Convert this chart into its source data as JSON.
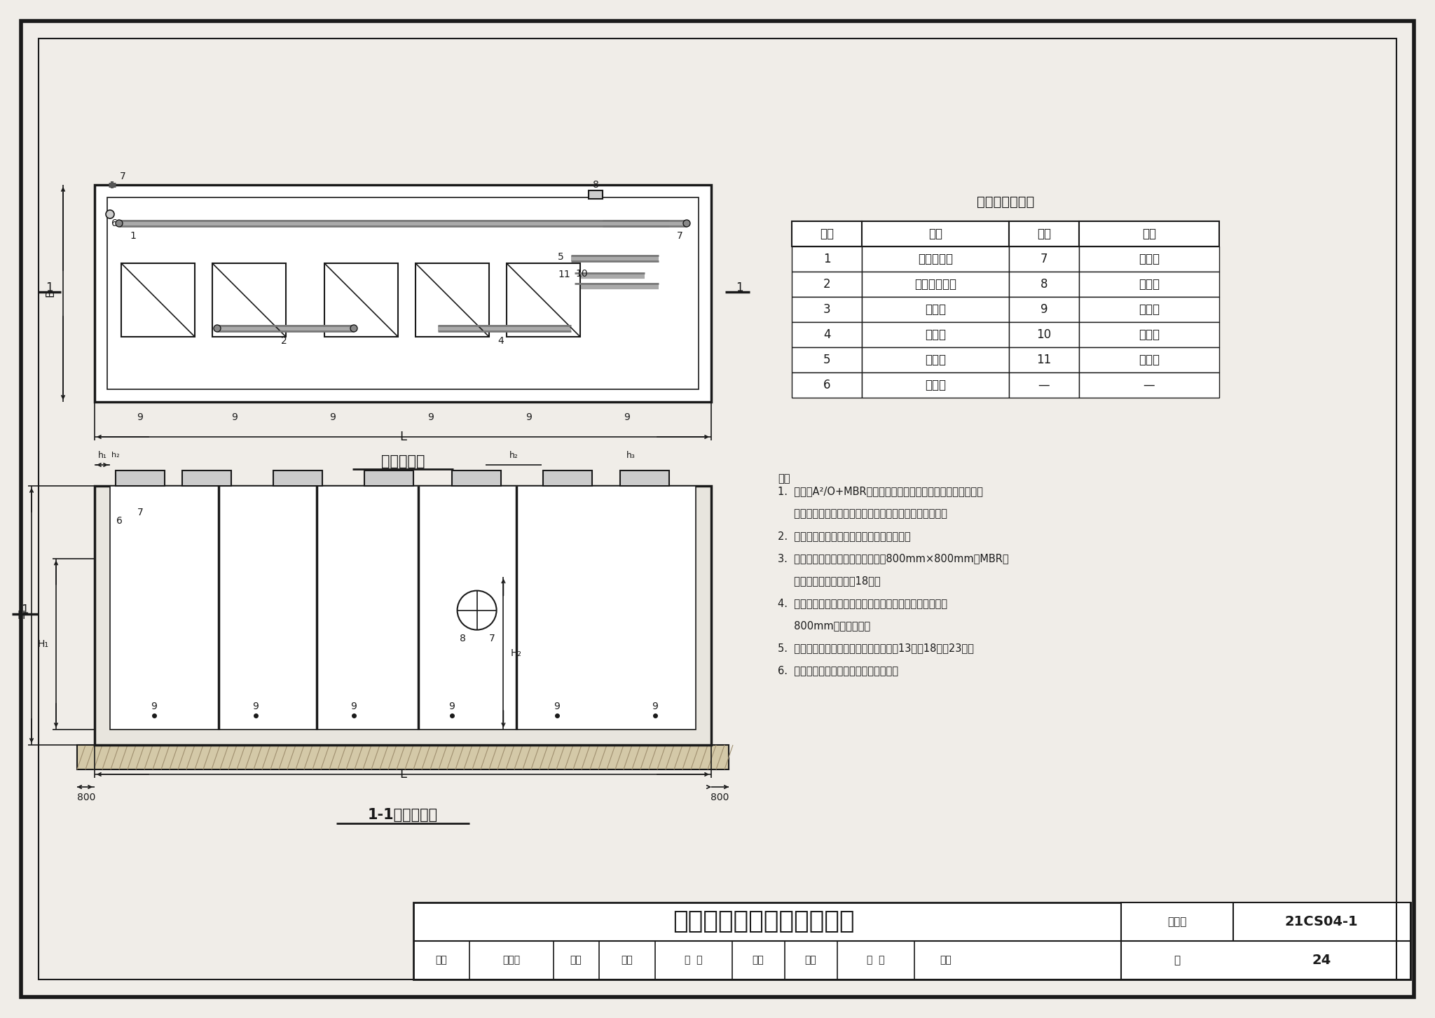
{
  "bg_color": "#f0ede8",
  "line_color": "#1a1a1a",
  "white": "#ffffff",
  "title": "地上式设备平面剖面示意图",
  "drawing_num": "21CS04-1",
  "page": "24",
  "table_title": "名称编号对照表",
  "table_headers": [
    "编号",
    "名称",
    "编号",
    "名称"
  ],
  "table_rows": [
    [
      "1",
      "污泥回流管",
      "7",
      "溢流口"
    ],
    [
      "2",
      "硝化液回流管",
      "8",
      "出水口"
    ],
    [
      "3",
      "曝气管",
      "9",
      "放空管"
    ],
    [
      "4",
      "排泥管",
      "10",
      "产水管"
    ],
    [
      "5",
      "加药管",
      "11",
      "反洗管"
    ],
    [
      "6",
      "进水口",
      "—",
      "—"
    ]
  ],
  "plan_title": "平面示意图",
  "section_title": "1-1剖面示意图",
  "notes_header": "注：",
  "notes": [
    "1.  本图为A²/O+MBR工艺地上式一体式设备平面、剖面示意图，",
    "     其他两种工艺地上式设备平面、剖面示意图可参考本图。",
    "2.  本图适用于碳钢、不锈钢材质一体化设备。",
    "3.  设备检修口尺寸（除膜池外）为：800mm×800mm，MBR膜",
    "     池检修口尺寸见本图集18页。",
    "4.  基坑底尺寸应满足施工操作要求，设备四周应留有不小于",
    "     800mm的操作空间。",
    "5.  根据工艺不同，图中详细尺寸见本图集13页、18页和23页。",
    "6.  设备基础基底应埋置在冻土深度以下。"
  ],
  "footer_left": [
    "审核",
    "王岩松",
    "琢初",
    "校对",
    "王  岩",
    "马名",
    "设计",
    "李  旻",
    "孟灵"
  ],
  "figure_number_label": "图集号",
  "page_label": "页"
}
